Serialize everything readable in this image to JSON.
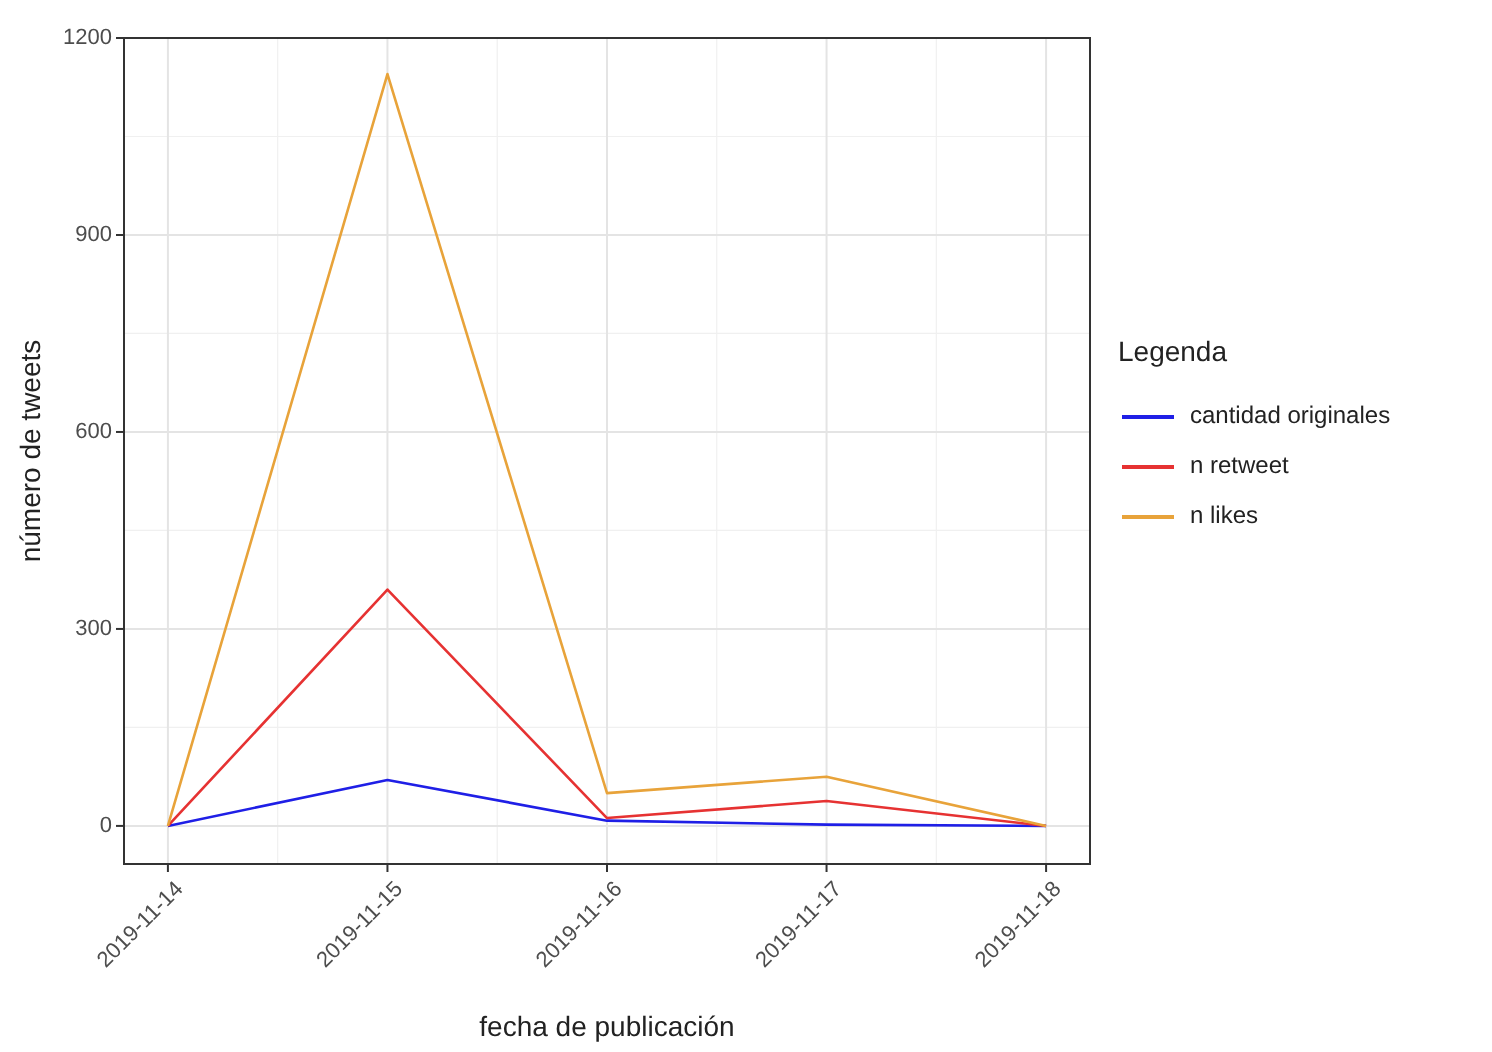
{
  "chart_data": {
    "type": "line",
    "xlabel": "fecha de publicación",
    "ylabel": "número de tweets",
    "legend_title": "Legenda",
    "x": [
      "2019-11-14",
      "2019-11-15",
      "2019-11-16",
      "2019-11-17",
      "2019-11-18"
    ],
    "series": [
      {
        "name": "cantidad originales",
        "color": "#1f1fe6",
        "values": [
          0,
          70,
          8,
          2,
          0
        ]
      },
      {
        "name": "n retweet",
        "color": "#e63232",
        "values": [
          0,
          360,
          12,
          38,
          0
        ]
      },
      {
        "name": "n likes",
        "color": "#e8a33a",
        "values": [
          0,
          1145,
          50,
          75,
          0
        ]
      }
    ],
    "xlim": [
      "2019-11-13T19:12",
      "2019-11-18T04:48"
    ],
    "xticks": [
      {
        "value": "2019-11-14",
        "label": "2019-11-14"
      },
      {
        "value": "2019-11-15",
        "label": "2019-11-15"
      },
      {
        "value": "2019-11-16",
        "label": "2019-11-16"
      },
      {
        "value": "2019-11-17",
        "label": "2019-11-17"
      },
      {
        "value": "2019-11-18",
        "label": "2019-11-18"
      }
    ],
    "ylim": [
      -58,
      1200
    ],
    "yticks": [
      0,
      300,
      600,
      900,
      1200
    ],
    "grid": true,
    "legend": "right",
    "marker": "none",
    "line_style": "solid"
  }
}
